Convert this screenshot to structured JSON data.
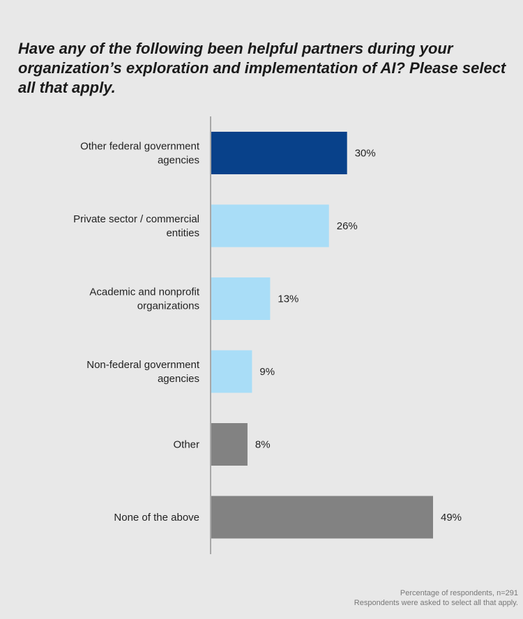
{
  "chart_data": {
    "type": "bar",
    "orientation": "horizontal",
    "title": "Have any of the following been helpful partners during your organization’s exploration and implementation of AI? Please select all that apply.",
    "categories": [
      [
        "Other federal government",
        "agencies"
      ],
      [
        "Private sector / commercial",
        "entities"
      ],
      [
        "Academic and nonprofit",
        "organizations"
      ],
      [
        "Non-federal government",
        "agencies"
      ],
      [
        "Other"
      ],
      [
        "None of the above"
      ]
    ],
    "values": [
      30,
      26,
      13,
      9,
      8,
      49
    ],
    "value_labels": [
      "30%",
      "26%",
      "13%",
      "9%",
      "8%",
      "49%"
    ],
    "bar_colors": [
      "#08418a",
      "#a9ddf7",
      "#a9ddf7",
      "#a9ddf7",
      "#828282",
      "#828282"
    ],
    "xlim": [
      0,
      49
    ],
    "grid": false,
    "legend": "none"
  },
  "colors": {
    "background": "#e8e8e8",
    "axis": "#666666",
    "text": "#222222"
  },
  "footnote": {
    "line1": "Percentage of respondents, n=291",
    "line2": "Respondents were asked to select all that apply."
  }
}
